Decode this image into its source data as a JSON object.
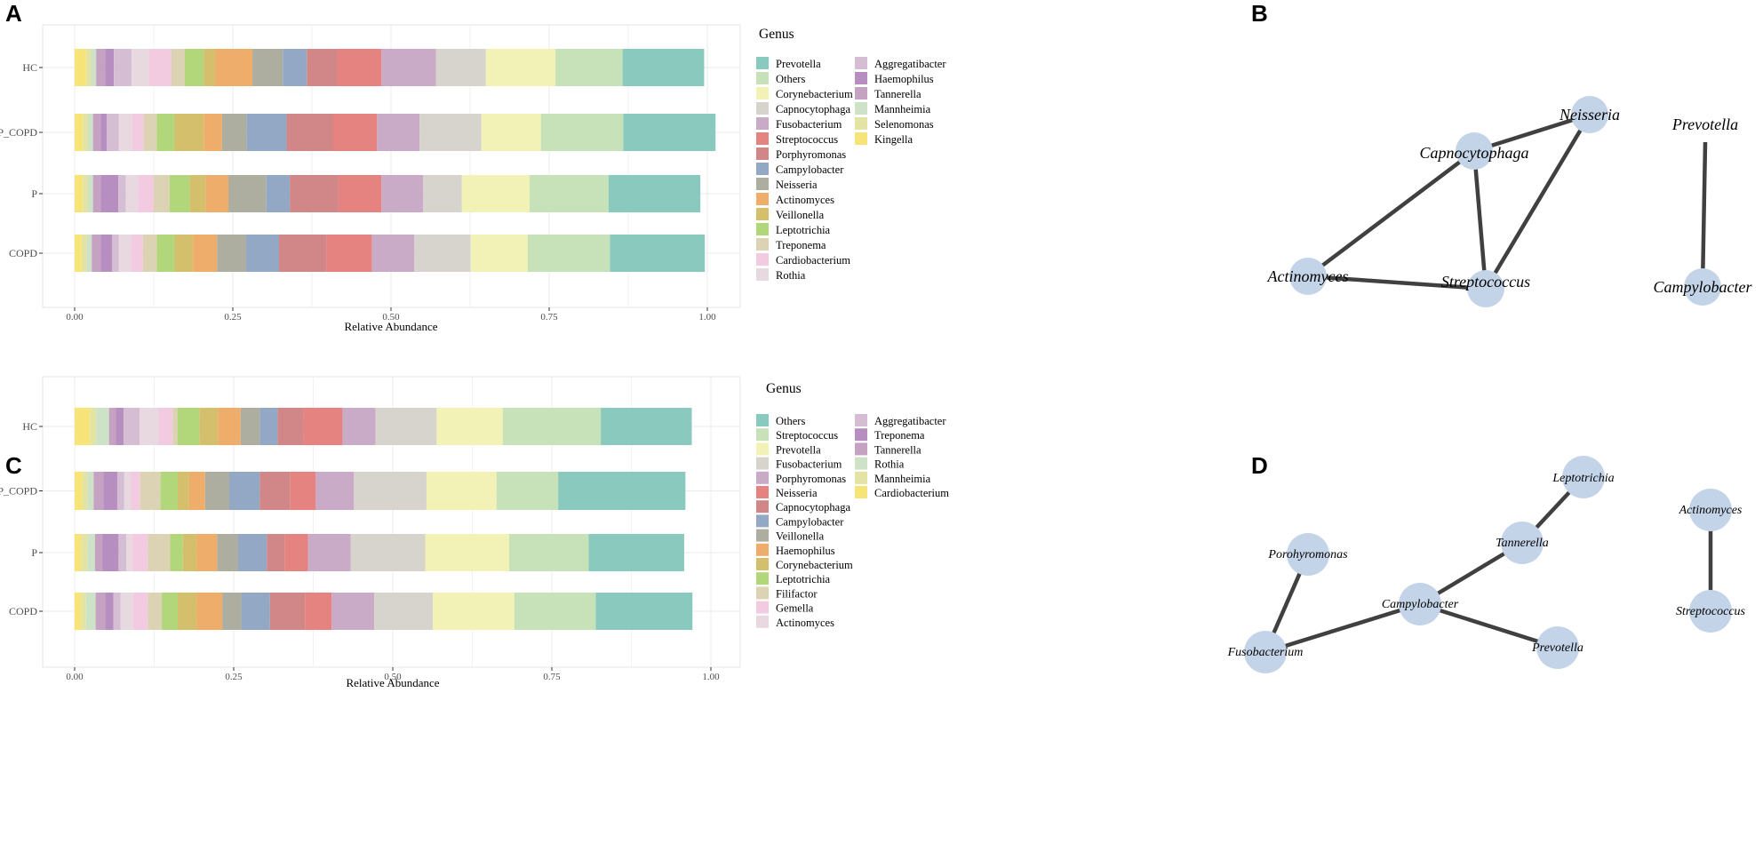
{
  "panels": [
    {
      "label": "A"
    },
    {
      "label": "B"
    },
    {
      "label": "C"
    },
    {
      "label": "D"
    }
  ],
  "chart_data": [
    {
      "panel": "A",
      "type": "bar",
      "orientation": "horizontal",
      "stacked": true,
      "xlabel": "Relative Abundance",
      "ylabel": "",
      "xlim": [
        0,
        1
      ],
      "xticks": [
        "0.00",
        "0.25",
        "0.50",
        "0.75",
        "1.00"
      ],
      "categories": [
        "HC",
        "P_COPD",
        "P",
        "COPD"
      ],
      "legend_title": "Genus",
      "legend_position": "right",
      "series": [
        {
          "name": "Kingella",
          "color": "#F6E479",
          "values": [
            0.018,
            0.013,
            0.013,
            0.011
          ]
        },
        {
          "name": "Selenomonas",
          "color": "#E3E3A3",
          "values": [
            0.008,
            0.008,
            0.008,
            0.008
          ]
        },
        {
          "name": "Mannheimia",
          "color": "#CEE2C8",
          "values": [
            0.008,
            0.008,
            0.008,
            0.008
          ]
        },
        {
          "name": "Tannerella",
          "color": "#C5A2C1",
          "values": [
            0.014,
            0.012,
            0.012,
            0.014
          ]
        },
        {
          "name": "Haemophilus",
          "color": "#B68FC0",
          "values": [
            0.014,
            0.01,
            0.028,
            0.018
          ]
        },
        {
          "name": "Aggregatibacter",
          "color": "#D5BDD4",
          "values": [
            0.028,
            0.019,
            0.012,
            0.011
          ]
        },
        {
          "name": "Rothia",
          "color": "#E7D9DF",
          "values": [
            0.027,
            0.021,
            0.019,
            0.019
          ]
        },
        {
          "name": "Cardiobacterium",
          "color": "#F2CBE0",
          "values": [
            0.036,
            0.018,
            0.025,
            0.019
          ]
        },
        {
          "name": "Treponema",
          "color": "#DCD2B4",
          "values": [
            0.021,
            0.021,
            0.025,
            0.022
          ]
        },
        {
          "name": "Leptotrichia",
          "color": "#B2D67A",
          "values": [
            0.03,
            0.028,
            0.032,
            0.028
          ]
        },
        {
          "name": "Veillonella",
          "color": "#D4C06C",
          "values": [
            0.018,
            0.046,
            0.025,
            0.029
          ]
        },
        {
          "name": "Actinomyces",
          "color": "#EFAD6B",
          "values": [
            0.059,
            0.029,
            0.036,
            0.038
          ]
        },
        {
          "name": "Neisseria",
          "color": "#ADADA0",
          "values": [
            0.048,
            0.039,
            0.06,
            0.046
          ]
        },
        {
          "name": "Campylobacter",
          "color": "#93A8C4",
          "values": [
            0.038,
            0.063,
            0.037,
            0.052
          ]
        },
        {
          "name": "Porphyromonas",
          "color": "#D18787",
          "values": [
            0.048,
            0.073,
            0.077,
            0.075
          ]
        },
        {
          "name": "Streptococcus",
          "color": "#E4837F",
          "values": [
            0.07,
            0.07,
            0.068,
            0.072
          ]
        },
        {
          "name": "Fusobacterium",
          "color": "#C9ABC7",
          "values": [
            0.086,
            0.067,
            0.066,
            0.067
          ]
        },
        {
          "name": "Capnocytophaga",
          "color": "#D7D4CE",
          "values": [
            0.079,
            0.098,
            0.061,
            0.089
          ]
        },
        {
          "name": "Corynebacterium",
          "color": "#F2F2B6",
          "values": [
            0.11,
            0.094,
            0.107,
            0.09
          ]
        },
        {
          "name": "Others",
          "color": "#C7E1B9",
          "values": [
            0.106,
            0.13,
            0.125,
            0.13
          ]
        },
        {
          "name": "Prevotella",
          "color": "#8AC9BE",
          "values": [
            0.129,
            0.146,
            0.145,
            0.15
          ]
        }
      ],
      "legend_order": [
        "Prevotella",
        "Others",
        "Corynebacterium",
        "Capnocytophaga",
        "Fusobacterium",
        "Streptococcus",
        "Porphyromonas",
        "Campylobacter",
        "Neisseria",
        "Actinomyces",
        "Veillonella",
        "Leptotrichia",
        "Treponema",
        "Cardiobacterium",
        "Rothia",
        "Aggregatibacter",
        "Haemophilus",
        "Tannerella",
        "Mannheimia",
        "Selenomonas",
        "Kingella"
      ]
    },
    {
      "panel": "C",
      "type": "bar",
      "orientation": "horizontal",
      "stacked": true,
      "xlabel": "Relative Abundance",
      "ylabel": "",
      "xlim": [
        0,
        1
      ],
      "xticks": [
        "0.00",
        "0.25",
        "0.50",
        "0.75",
        "1.00"
      ],
      "categories": [
        "HC",
        "P_COPD",
        "P",
        "COPD"
      ],
      "legend_title": "Genus",
      "legend_position": "right",
      "series": [
        {
          "name": "Cardiobacterium",
          "color": "#F6E479",
          "values": [
            0.024,
            0.012,
            0.01,
            0.01
          ]
        },
        {
          "name": "Mannheimia",
          "color": "#E3E3A3",
          "values": [
            0.01,
            0.008,
            0.01,
            0.008
          ]
        },
        {
          "name": "Rothia",
          "color": "#CEE2C8",
          "values": [
            0.02,
            0.01,
            0.012,
            0.015
          ]
        },
        {
          "name": "Tannerella",
          "color": "#C5A2C1",
          "values": [
            0.011,
            0.015,
            0.012,
            0.015
          ]
        },
        {
          "name": "Treponema",
          "color": "#B68FC0",
          "values": [
            0.012,
            0.022,
            0.025,
            0.013
          ]
        },
        {
          "name": "Aggregatibacter",
          "color": "#D5BDD4",
          "values": [
            0.025,
            0.011,
            0.012,
            0.011
          ]
        },
        {
          "name": "Actinomyces",
          "color": "#E7D9DF",
          "values": [
            0.03,
            0.01,
            0.01,
            0.02
          ]
        },
        {
          "name": "Gemella",
          "color": "#F2CBE0",
          "values": [
            0.022,
            0.015,
            0.024,
            0.023
          ]
        },
        {
          "name": "Filifactor",
          "color": "#DCD2B4",
          "values": [
            0.008,
            0.032,
            0.035,
            0.022
          ]
        },
        {
          "name": "Leptotrichia",
          "color": "#B2D67A",
          "values": [
            0.034,
            0.027,
            0.02,
            0.025
          ]
        },
        {
          "name": "Corynebacterium",
          "color": "#D4C06C",
          "values": [
            0.029,
            0.018,
            0.022,
            0.03
          ]
        },
        {
          "name": "Haemophilus",
          "color": "#EFAD6B",
          "values": [
            0.036,
            0.025,
            0.032,
            0.04
          ]
        },
        {
          "name": "Veillonella",
          "color": "#ADADA0",
          "values": [
            0.03,
            0.038,
            0.033,
            0.03
          ]
        },
        {
          "name": "Campylobacter",
          "color": "#93A8C4",
          "values": [
            0.028,
            0.048,
            0.045,
            0.045
          ]
        },
        {
          "name": "Capnocytophaga",
          "color": "#D18787",
          "values": [
            0.04,
            0.048,
            0.028,
            0.055
          ]
        },
        {
          "name": "Neisseria",
          "color": "#E4837F",
          "values": [
            0.062,
            0.04,
            0.037,
            0.042
          ]
        },
        {
          "name": "Porphyromonas",
          "color": "#C9ABC7",
          "values": [
            0.052,
            0.06,
            0.067,
            0.067
          ]
        },
        {
          "name": "Fusobacterium",
          "color": "#D7D4CE",
          "values": [
            0.096,
            0.114,
            0.117,
            0.092
          ]
        },
        {
          "name": "Prevotella",
          "color": "#F2F2B6",
          "values": [
            0.104,
            0.11,
            0.132,
            0.128
          ]
        },
        {
          "name": "Streptococcus",
          "color": "#C7E1B9",
          "values": [
            0.154,
            0.097,
            0.125,
            0.128
          ]
        },
        {
          "name": "Others",
          "color": "#8AC9BE",
          "values": [
            0.143,
            0.2,
            0.15,
            0.152
          ]
        }
      ],
      "legend_order": [
        "Others",
        "Streptococcus",
        "Prevotella",
        "Fusobacterium",
        "Porphyromonas",
        "Neisseria",
        "Capnocytophaga",
        "Campylobacter",
        "Veillonella",
        "Haemophilus",
        "Corynebacterium",
        "Leptotrichia",
        "Filifactor",
        "Gemella",
        "Actinomyces",
        "Aggregatibacter",
        "Treponema",
        "Tannerella",
        "Rothia",
        "Mannheimia",
        "Cardiobacterium"
      ]
    }
  ],
  "networks": [
    {
      "panel": "B",
      "type": "network",
      "node_color": "#C4D4E8",
      "edge_color": "#404040",
      "nodes": [
        "Neisseria",
        "Prevotella",
        "Capnocytophaga",
        "Actinomyces",
        "Streptococcus",
        "Campylobacter"
      ],
      "edges": [
        [
          "Capnocytophaga",
          "Neisseria"
        ],
        [
          "Capnocytophaga",
          "Actinomyces"
        ],
        [
          "Capnocytophaga",
          "Streptococcus"
        ],
        [
          "Neisseria",
          "Streptococcus"
        ],
        [
          "Actinomyces",
          "Streptococcus"
        ],
        [
          "Prevotella",
          "Campylobacter"
        ]
      ]
    },
    {
      "panel": "D",
      "type": "network",
      "node_color": "#C4D4E8",
      "edge_color": "#404040",
      "nodes": [
        "Leptotrichia",
        "Actinomyces",
        "Porohyromonas",
        "Tannerella",
        "Campylobacter",
        "Streptococcus",
        "Prevotella",
        "Fusobacterium"
      ],
      "edges": [
        [
          "Leptotrichia",
          "Tannerella"
        ],
        [
          "Tannerella",
          "Campylobacter"
        ],
        [
          "Campylobacter",
          "Fusobacterium"
        ],
        [
          "Campylobacter",
          "Prevotella"
        ],
        [
          "Porohyromonas",
          "Fusobacterium"
        ],
        [
          "Actinomyces",
          "Streptococcus"
        ]
      ]
    }
  ]
}
